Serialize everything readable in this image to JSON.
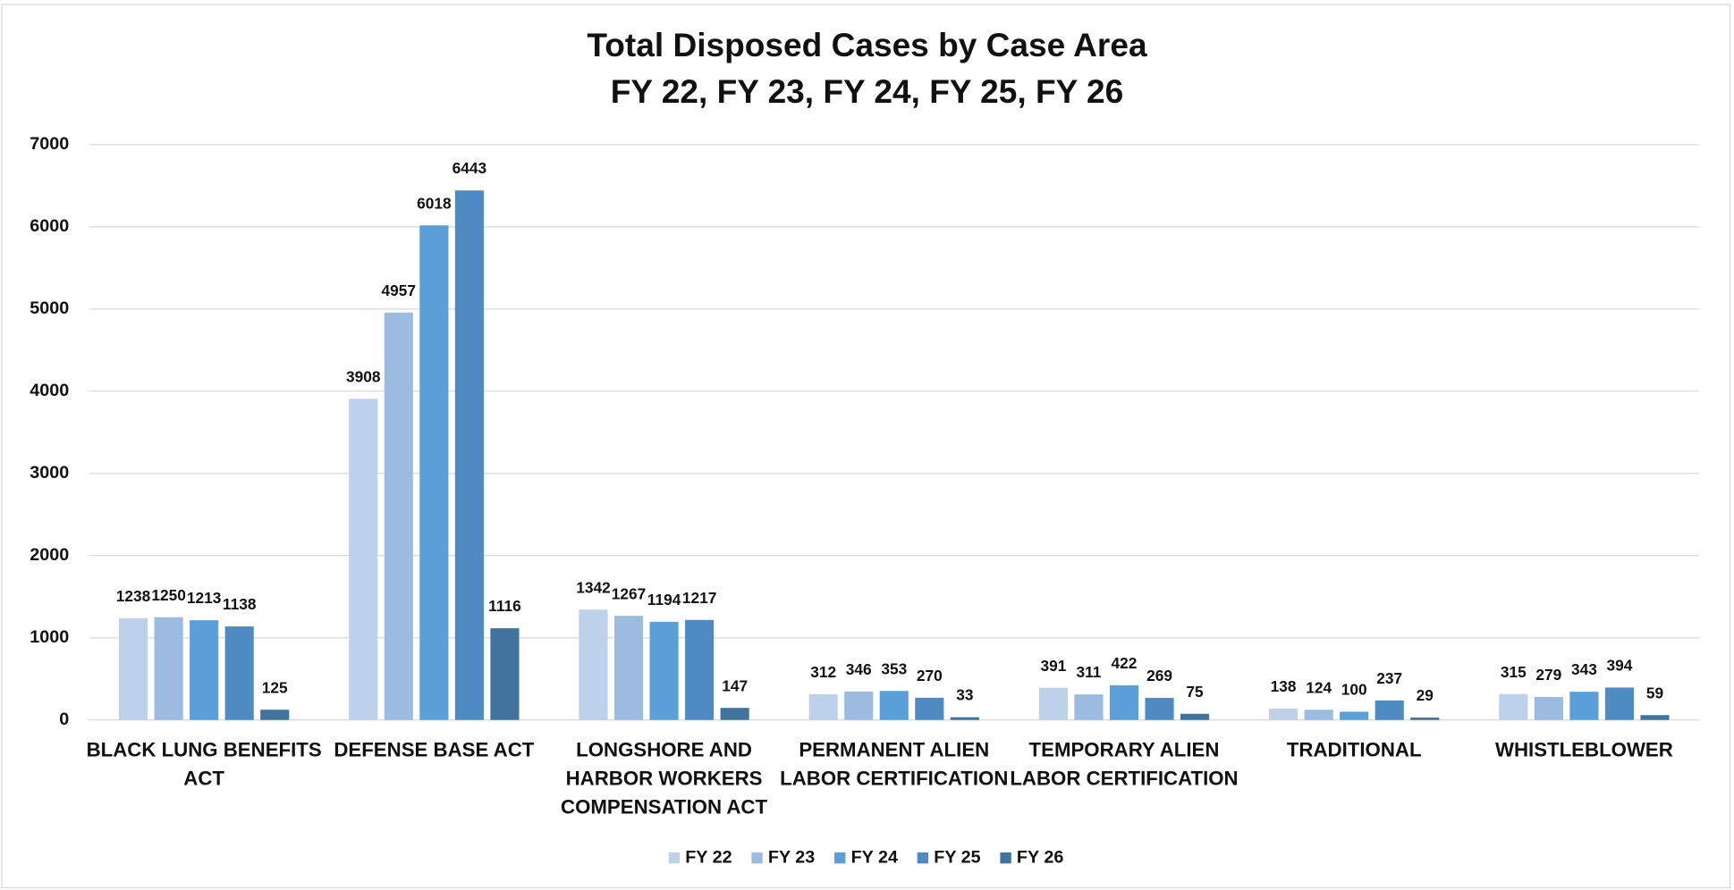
{
  "chart_data": {
    "type": "bar",
    "title": "Total Disposed Cases by Case Area",
    "subtitle": "FY 22, FY 23, FY 24, FY 25, FY 26",
    "categories": [
      "BLACK LUNG BENEFITS ACT",
      "DEFENSE BASE ACT",
      "LONGSHORE AND HARBOR WORKERS COMPENSATION ACT",
      "PERMANENT ALIEN LABOR CERTIFICATION",
      "TEMPORARY ALIEN LABOR CERTIFICATION",
      "TRADITIONAL",
      "WHISTLEBLOWER"
    ],
    "series": [
      {
        "name": "FY 22",
        "color": "#bdd1eb",
        "values": [
          1238,
          3908,
          1342,
          312,
          391,
          138,
          315
        ]
      },
      {
        "name": "FY 23",
        "color": "#9bbce0",
        "values": [
          1250,
          4957,
          1267,
          346,
          311,
          124,
          279
        ]
      },
      {
        "name": "FY 24",
        "color": "#5b9fd8",
        "values": [
          1213,
          6018,
          1194,
          353,
          422,
          100,
          343
        ]
      },
      {
        "name": "FY 25",
        "color": "#4e8bc2",
        "values": [
          1138,
          6443,
          1217,
          270,
          269,
          237,
          394
        ]
      },
      {
        "name": "FY 26",
        "color": "#41739f",
        "values": [
          125,
          1116,
          147,
          33,
          75,
          29,
          59
        ]
      }
    ],
    "ylim": [
      0,
      7000
    ],
    "yticks": [
      0,
      1000,
      2000,
      3000,
      4000,
      5000,
      6000,
      7000
    ],
    "grid": true,
    "legend": "bottom"
  }
}
